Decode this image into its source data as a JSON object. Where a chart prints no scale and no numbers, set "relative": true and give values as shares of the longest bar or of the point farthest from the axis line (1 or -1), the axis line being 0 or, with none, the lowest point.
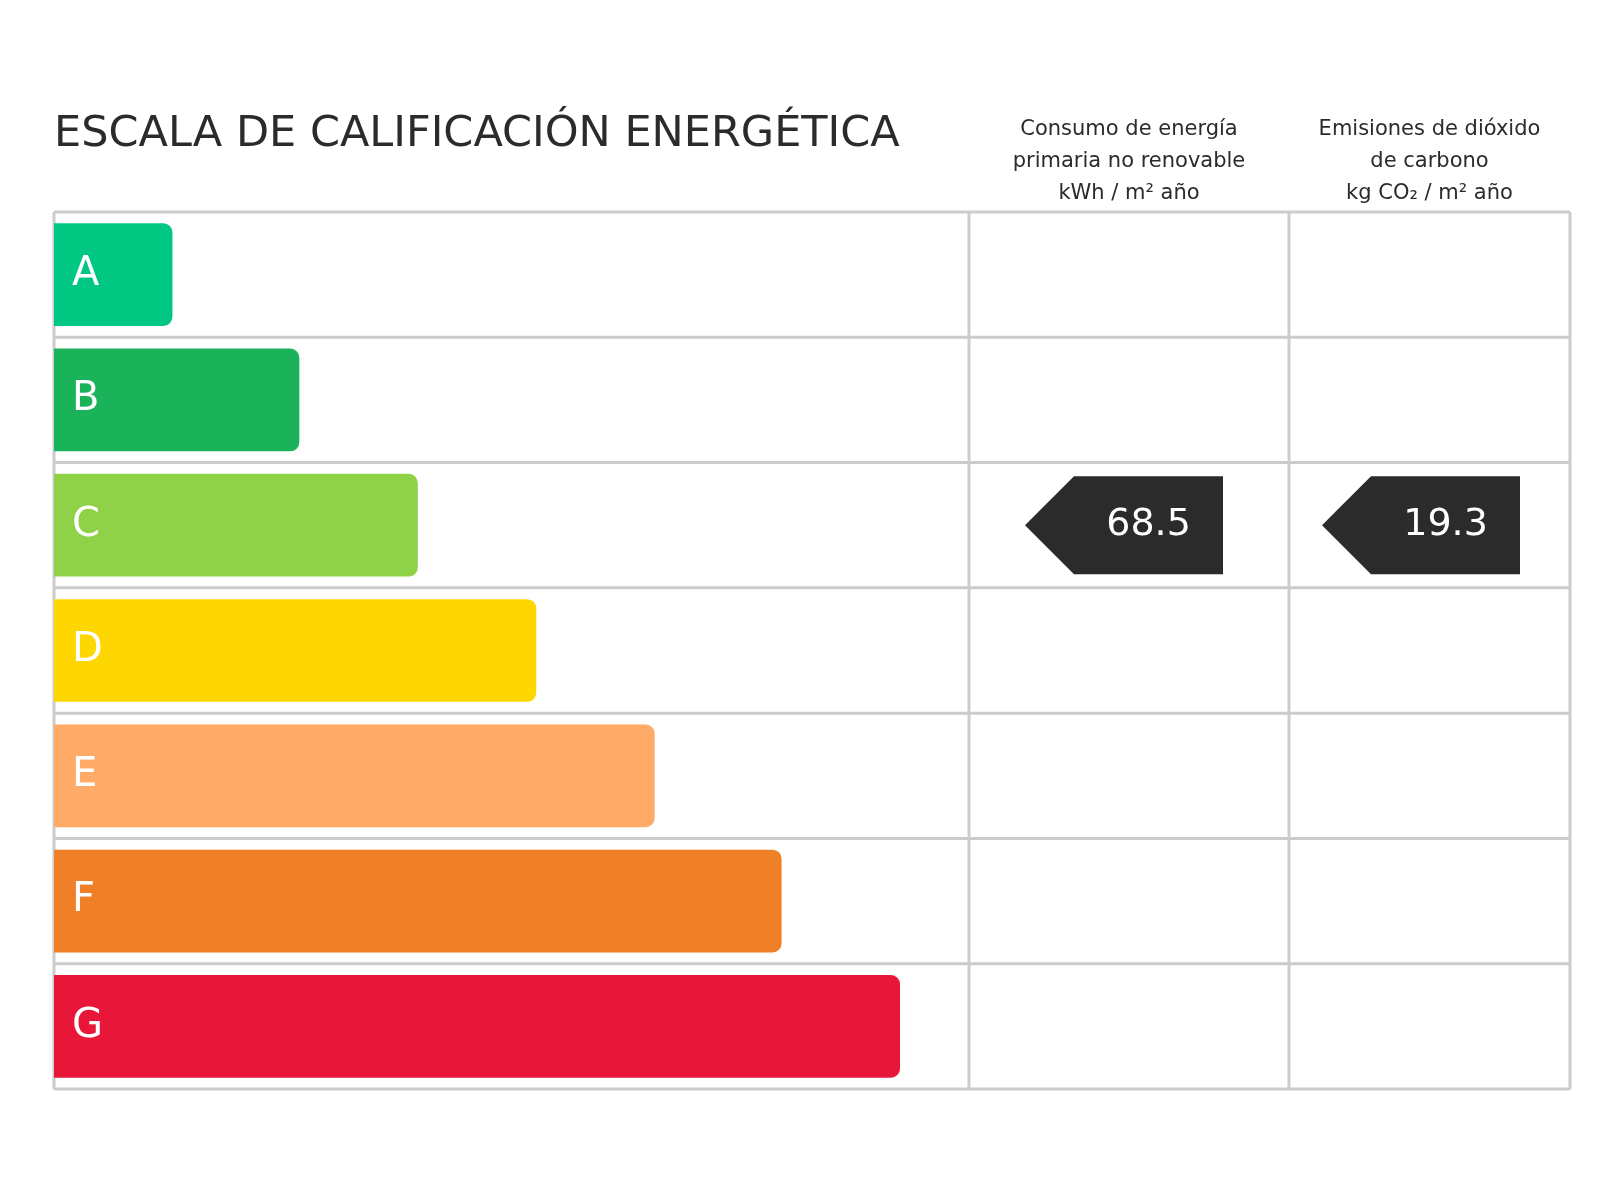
{
  "chart_data": {
    "type": "bar",
    "orientation": "horizontal",
    "relative": true,
    "title": "ESCALA DE CALIFICACIÓN ENERGÉTICA",
    "categories": [
      "A",
      "B",
      "C",
      "D",
      "E",
      "F",
      "G"
    ],
    "values": [
      0.14,
      0.29,
      0.43,
      0.57,
      0.71,
      0.86,
      1
    ],
    "colors": [
      "#00c882",
      "#1ab35a",
      "#8fd147",
      "#ffd700",
      "#ffaa66",
      "#ef8027",
      "#e8173a"
    ],
    "legend": false,
    "annotations": [
      "Consumo de energía\nprimaria no renovable\nkWh / m² año",
      "Emisiones de dióxido\nde carbono\nkg CO₂ / m² año",
      "68.5",
      "19.3"
    ]
  }
}
